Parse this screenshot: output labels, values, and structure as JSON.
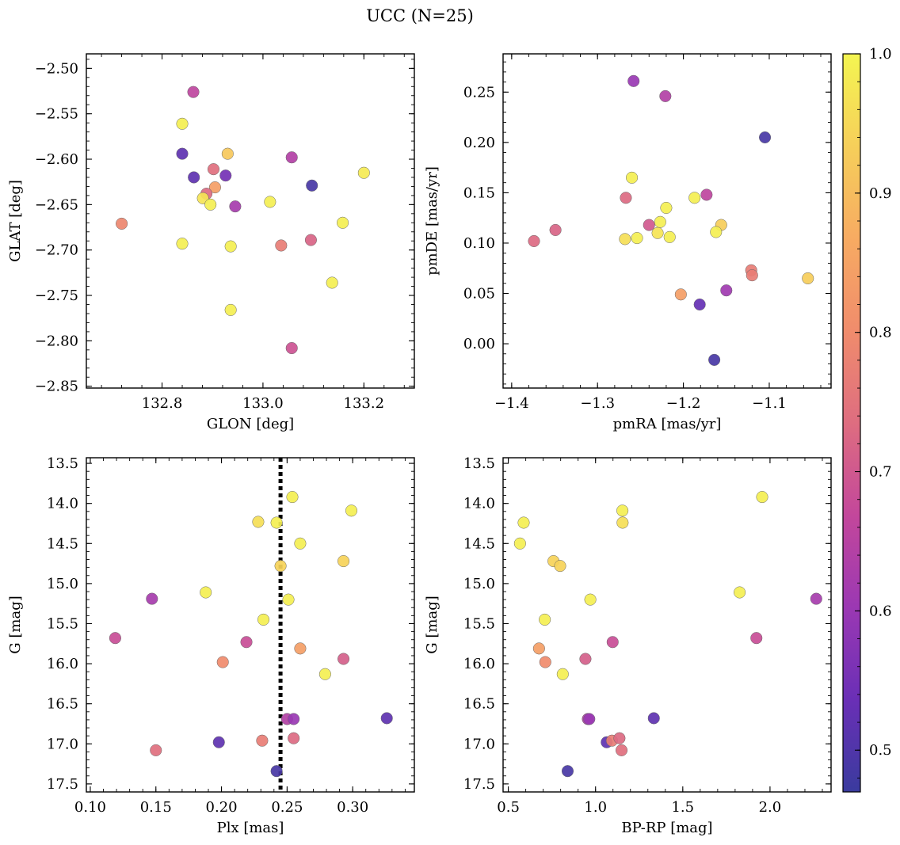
{
  "figure": {
    "title": "UCC (N=25)"
  },
  "colorbar": {
    "range": [
      0.47,
      1.0
    ],
    "ticks": [
      0.5,
      0.6,
      0.7,
      0.8,
      0.9,
      1.0
    ],
    "tick_labels": [
      "0.5",
      "0.6",
      "0.7",
      "0.8",
      "0.9",
      "1.0"
    ],
    "colormap": "plasma",
    "colors": [
      "#3a3b9e",
      "#6a2fb6",
      "#9b38b3",
      "#c3479b",
      "#de6d80",
      "#f08c6c",
      "#f7ab62",
      "#f6cf5a",
      "#f4f551"
    ]
  },
  "chart_data": [
    {
      "type": "scatter",
      "xlabel": "GLON [deg]",
      "ylabel": "GLAT [deg]",
      "xlim": [
        132.65,
        133.3
      ],
      "ylim": [
        -2.852,
        -2.484
      ],
      "x_ticks": [
        132.8,
        133.0,
        133.2
      ],
      "x_tick_labels": [
        "132.8",
        "133.0",
        "133.2"
      ],
      "y_ticks": [
        -2.5,
        -2.55,
        -2.6,
        -2.65,
        -2.7,
        -2.75,
        -2.8,
        -2.85
      ],
      "y_tick_labels": [
        "−2.50",
        "−2.55",
        "−2.60",
        "−2.65",
        "−2.70",
        "−2.75",
        "−2.80",
        "−2.85"
      ],
      "points": [
        {
          "x": 132.862,
          "y": -2.526,
          "c": 0.66
        },
        {
          "x": 132.84,
          "y": -2.561,
          "c": 0.99
        },
        {
          "x": 132.84,
          "y": -2.594,
          "c": 0.52
        },
        {
          "x": 132.93,
          "y": -2.594,
          "c": 0.92
        },
        {
          "x": 133.057,
          "y": -2.598,
          "c": 0.64
        },
        {
          "x": 132.902,
          "y": -2.611,
          "c": 0.74
        },
        {
          "x": 132.926,
          "y": -2.618,
          "c": 0.55
        },
        {
          "x": 132.863,
          "y": -2.62,
          "c": 0.52
        },
        {
          "x": 133.2,
          "y": -2.615,
          "c": 0.98
        },
        {
          "x": 133.097,
          "y": -2.629,
          "c": 0.49
        },
        {
          "x": 132.905,
          "y": -2.631,
          "c": 0.84
        },
        {
          "x": 132.888,
          "y": -2.638,
          "c": 0.73
        },
        {
          "x": 132.881,
          "y": -2.643,
          "c": 0.97
        },
        {
          "x": 133.014,
          "y": -2.647,
          "c": 0.99
        },
        {
          "x": 132.896,
          "y": -2.65,
          "c": 0.99
        },
        {
          "x": 132.945,
          "y": -2.652,
          "c": 0.62
        },
        {
          "x": 132.72,
          "y": -2.671,
          "c": 0.79
        },
        {
          "x": 133.158,
          "y": -2.67,
          "c": 0.99
        },
        {
          "x": 133.095,
          "y": -2.689,
          "c": 0.72
        },
        {
          "x": 132.84,
          "y": -2.693,
          "c": 0.99
        },
        {
          "x": 132.936,
          "y": -2.696,
          "c": 0.99
        },
        {
          "x": 133.036,
          "y": -2.695,
          "c": 0.77
        },
        {
          "x": 133.137,
          "y": -2.736,
          "c": 0.99
        },
        {
          "x": 132.936,
          "y": -2.766,
          "c": 0.99
        },
        {
          "x": 133.057,
          "y": -2.808,
          "c": 0.69
        }
      ]
    },
    {
      "type": "scatter",
      "xlabel": "pmRA [mas/yr]",
      "ylabel": "pmDE [mas/yr]",
      "xlim": [
        -1.41,
        -1.028
      ],
      "ylim": [
        -0.044,
        0.288
      ],
      "x_ticks": [
        -1.4,
        -1.3,
        -1.2,
        -1.1
      ],
      "x_tick_labels": [
        "−1.4",
        "−1.3",
        "−1.2",
        "−1.1"
      ],
      "y_ticks": [
        0.0,
        0.05,
        0.1,
        0.15,
        0.2,
        0.25
      ],
      "y_tick_labels": [
        "0.00",
        "0.05",
        "0.10",
        "0.15",
        "0.20",
        "0.25"
      ],
      "points": [
        {
          "x": -1.258,
          "y": 0.261,
          "c": 0.6
        },
        {
          "x": -1.221,
          "y": 0.246,
          "c": 0.64
        },
        {
          "x": -1.105,
          "y": 0.205,
          "c": 0.49
        },
        {
          "x": -1.26,
          "y": 0.165,
          "c": 0.99
        },
        {
          "x": -1.267,
          "y": 0.145,
          "c": 0.73
        },
        {
          "x": -1.187,
          "y": 0.145,
          "c": 0.99
        },
        {
          "x": -1.173,
          "y": 0.148,
          "c": 0.66
        },
        {
          "x": -1.22,
          "y": 0.135,
          "c": 0.99
        },
        {
          "x": -1.227,
          "y": 0.121,
          "c": 0.99
        },
        {
          "x": -1.24,
          "y": 0.118,
          "c": 0.7
        },
        {
          "x": -1.156,
          "y": 0.118,
          "c": 0.93
        },
        {
          "x": -1.162,
          "y": 0.111,
          "c": 0.99
        },
        {
          "x": -1.349,
          "y": 0.113,
          "c": 0.72
        },
        {
          "x": -1.23,
          "y": 0.11,
          "c": 0.97
        },
        {
          "x": -1.216,
          "y": 0.106,
          "c": 0.99
        },
        {
          "x": -1.268,
          "y": 0.104,
          "c": 0.96
        },
        {
          "x": -1.254,
          "y": 0.105,
          "c": 0.99
        },
        {
          "x": -1.374,
          "y": 0.102,
          "c": 0.73
        },
        {
          "x": -1.121,
          "y": 0.073,
          "c": 0.77
        },
        {
          "x": -1.12,
          "y": 0.068,
          "c": 0.77
        },
        {
          "x": -1.055,
          "y": 0.065,
          "c": 0.93
        },
        {
          "x": -1.15,
          "y": 0.053,
          "c": 0.61
        },
        {
          "x": -1.203,
          "y": 0.049,
          "c": 0.84
        },
        {
          "x": -1.181,
          "y": 0.039,
          "c": 0.53
        },
        {
          "x": -1.164,
          "y": -0.016,
          "c": 0.49
        }
      ]
    },
    {
      "type": "scatter",
      "xlabel": "Plx [mas]",
      "ylabel": "G [mag]",
      "xlim": [
        0.097,
        0.347
      ],
      "ylim": [
        17.6,
        13.43
      ],
      "y_inverted": true,
      "x_ticks": [
        0.1,
        0.15,
        0.2,
        0.25,
        0.3
      ],
      "x_tick_labels": [
        "0.10",
        "0.15",
        "0.20",
        "0.25",
        "0.30"
      ],
      "y_ticks": [
        13.5,
        14.0,
        14.5,
        15.0,
        15.5,
        16.0,
        16.5,
        17.0,
        17.5
      ],
      "y_tick_labels": [
        "13.5",
        "14.0",
        "14.5",
        "15.0",
        "15.5",
        "16.0",
        "16.5",
        "17.0",
        "17.5"
      ],
      "vline": 0.245,
      "points": [
        {
          "x": 0.254,
          "y": 13.92,
          "c": 0.99
        },
        {
          "x": 0.299,
          "y": 14.09,
          "c": 0.99
        },
        {
          "x": 0.228,
          "y": 14.23,
          "c": 0.96
        },
        {
          "x": 0.242,
          "y": 14.24,
          "c": 0.99
        },
        {
          "x": 0.26,
          "y": 14.5,
          "c": 0.99
        },
        {
          "x": 0.293,
          "y": 14.72,
          "c": 0.94
        },
        {
          "x": 0.245,
          "y": 14.78,
          "c": 0.94
        },
        {
          "x": 0.188,
          "y": 15.11,
          "c": 0.99
        },
        {
          "x": 0.147,
          "y": 15.19,
          "c": 0.62
        },
        {
          "x": 0.251,
          "y": 15.2,
          "c": 0.99
        },
        {
          "x": 0.232,
          "y": 15.45,
          "c": 0.99
        },
        {
          "x": 0.119,
          "y": 15.68,
          "c": 0.68
        },
        {
          "x": 0.219,
          "y": 15.73,
          "c": 0.68
        },
        {
          "x": 0.26,
          "y": 15.81,
          "c": 0.84
        },
        {
          "x": 0.293,
          "y": 15.94,
          "c": 0.71
        },
        {
          "x": 0.201,
          "y": 15.98,
          "c": 0.8
        },
        {
          "x": 0.279,
          "y": 16.13,
          "c": 0.99
        },
        {
          "x": 0.326,
          "y": 16.68,
          "c": 0.52
        },
        {
          "x": 0.25,
          "y": 16.69,
          "c": 0.64
        },
        {
          "x": 0.255,
          "y": 16.69,
          "c": 0.6
        },
        {
          "x": 0.255,
          "y": 16.93,
          "c": 0.73
        },
        {
          "x": 0.231,
          "y": 16.96,
          "c": 0.77
        },
        {
          "x": 0.198,
          "y": 16.98,
          "c": 0.52
        },
        {
          "x": 0.15,
          "y": 17.08,
          "c": 0.74
        },
        {
          "x": 0.242,
          "y": 17.34,
          "c": 0.49
        }
      ]
    },
    {
      "type": "scatter",
      "xlabel": "BP-RP [mag]",
      "ylabel": "G [mag]",
      "xlim": [
        0.47,
        2.35
      ],
      "ylim": [
        17.6,
        13.43
      ],
      "y_inverted": true,
      "x_ticks": [
        0.5,
        1.0,
        1.5,
        2.0
      ],
      "x_tick_labels": [
        "0.5",
        "1.0",
        "1.5",
        "2.0"
      ],
      "y_ticks": [
        13.5,
        14.0,
        14.5,
        15.0,
        15.5,
        16.0,
        16.5,
        17.0,
        17.5
      ],
      "y_tick_labels": [
        "13.5",
        "14.0",
        "14.5",
        "15.0",
        "15.5",
        "16.0",
        "16.5",
        "17.0",
        "17.5"
      ],
      "points": [
        {
          "x": 1.955,
          "y": 13.92,
          "c": 0.99
        },
        {
          "x": 1.154,
          "y": 14.09,
          "c": 0.99
        },
        {
          "x": 0.588,
          "y": 14.24,
          "c": 0.99
        },
        {
          "x": 1.155,
          "y": 14.24,
          "c": 0.96
        },
        {
          "x": 0.567,
          "y": 14.5,
          "c": 0.99
        },
        {
          "x": 0.759,
          "y": 14.72,
          "c": 0.94
        },
        {
          "x": 0.797,
          "y": 14.78,
          "c": 0.94
        },
        {
          "x": 1.826,
          "y": 15.11,
          "c": 0.99
        },
        {
          "x": 0.97,
          "y": 15.2,
          "c": 0.99
        },
        {
          "x": 2.265,
          "y": 15.19,
          "c": 0.62
        },
        {
          "x": 0.709,
          "y": 15.45,
          "c": 0.99
        },
        {
          "x": 1.098,
          "y": 15.73,
          "c": 0.68
        },
        {
          "x": 1.922,
          "y": 15.68,
          "c": 0.68
        },
        {
          "x": 0.676,
          "y": 15.81,
          "c": 0.84
        },
        {
          "x": 0.942,
          "y": 15.94,
          "c": 0.71
        },
        {
          "x": 0.712,
          "y": 15.98,
          "c": 0.8
        },
        {
          "x": 0.812,
          "y": 16.13,
          "c": 0.99
        },
        {
          "x": 1.334,
          "y": 16.68,
          "c": 0.52
        },
        {
          "x": 0.956,
          "y": 16.69,
          "c": 0.64
        },
        {
          "x": 0.964,
          "y": 16.69,
          "c": 0.6
        },
        {
          "x": 1.064,
          "y": 16.98,
          "c": 0.52
        },
        {
          "x": 1.094,
          "y": 16.96,
          "c": 0.77
        },
        {
          "x": 1.137,
          "y": 16.93,
          "c": 0.73
        },
        {
          "x": 1.149,
          "y": 17.08,
          "c": 0.74
        },
        {
          "x": 0.84,
          "y": 17.34,
          "c": 0.49
        }
      ]
    }
  ]
}
